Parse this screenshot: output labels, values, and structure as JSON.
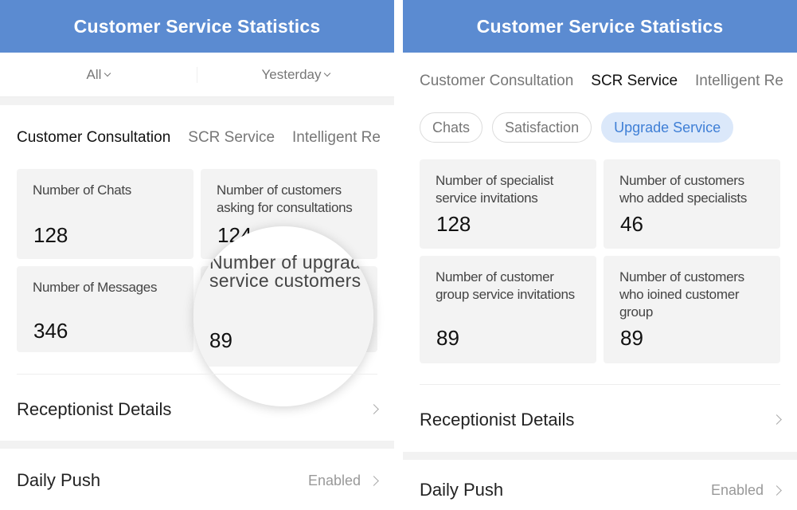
{
  "left": {
    "header_title": "Customer Service Statistics",
    "filters": [
      {
        "label": "All"
      },
      {
        "label": "Yesterday"
      }
    ],
    "tabs": [
      {
        "label": "Customer Consultation",
        "active": true
      },
      {
        "label": "SCR Service",
        "active": false
      },
      {
        "label": "Intelligent Re",
        "active": false
      }
    ],
    "stats": [
      {
        "label": "Number of Chats",
        "value": "128"
      },
      {
        "label": "Number of customers asking for consultations",
        "value": "124"
      },
      {
        "label": "Number of Messages",
        "value": "346"
      }
    ],
    "magnified": {
      "label_line1": "Number of upgrade",
      "label_line2": "service customers",
      "value": "89"
    },
    "receptionist_row": {
      "title": "Receptionist Details"
    },
    "daily_push_row": {
      "title": "Daily Push",
      "status": "Enabled"
    }
  },
  "right": {
    "header_title": "Customer Service Statistics",
    "tabs": [
      {
        "label": "Customer Consultation",
        "active": false
      },
      {
        "label": "SCR Service",
        "active": true
      },
      {
        "label": "Intelligent Re",
        "active": false
      }
    ],
    "sub_tabs": [
      {
        "label": "Chats",
        "active": false
      },
      {
        "label": "Satisfaction",
        "active": false
      },
      {
        "label": "Upgrade Service",
        "active": true
      }
    ],
    "stats": [
      {
        "label": "Number of specialist service invitations",
        "value": "128"
      },
      {
        "label": "Number of customers who added specialists",
        "value": "46"
      },
      {
        "label": "Number of customer group service invitations",
        "value": "89"
      },
      {
        "label": "Number of customers who ioined customer group",
        "value": "89"
      }
    ],
    "receptionist_row": {
      "title": "Receptionist Details"
    },
    "daily_push_row": {
      "title": "Daily Push",
      "status": "Enabled"
    }
  },
  "colors": {
    "header": "#5b8bd1",
    "accent": "#4a86d8",
    "card": "#f3f3f3",
    "pill_active_bg": "#dbe8fa"
  }
}
